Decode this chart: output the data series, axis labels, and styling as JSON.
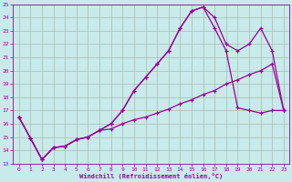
{
  "bg_color": "#c8eaea",
  "line_color": "#990099",
  "grid_color": "#aabbaa",
  "xlim_min": 0,
  "xlim_max": 23,
  "ylim_min": 13,
  "ylim_max": 25,
  "xticks": [
    0,
    1,
    2,
    3,
    4,
    5,
    6,
    7,
    8,
    9,
    10,
    11,
    12,
    13,
    14,
    15,
    16,
    17,
    18,
    19,
    20,
    21,
    22,
    23
  ],
  "yticks": [
    13,
    14,
    15,
    16,
    17,
    18,
    19,
    20,
    21,
    22,
    23,
    24,
    25
  ],
  "xlabel": "Windchill (Refroidissement éolien,°C)",
  "line1_x": [
    0,
    1,
    2,
    3,
    4,
    5,
    6,
    7,
    8,
    9,
    10,
    11,
    12,
    13,
    14,
    15,
    16,
    17,
    18,
    19,
    20,
    21,
    22,
    23
  ],
  "line1_y": [
    16.5,
    14.9,
    13.3,
    14.2,
    14.3,
    14.8,
    15.0,
    15.5,
    15.6,
    16.0,
    16.3,
    16.5,
    16.8,
    17.1,
    17.5,
    17.8,
    18.2,
    18.5,
    19.0,
    19.3,
    19.7,
    20.0,
    20.5,
    17.0
  ],
  "line2_x": [
    0,
    1,
    2,
    3,
    4,
    5,
    6,
    7,
    8,
    9,
    10,
    11,
    12,
    13,
    14,
    15,
    16,
    17,
    18,
    19,
    20,
    21,
    22,
    23
  ],
  "line2_y": [
    16.5,
    14.9,
    13.3,
    14.2,
    14.3,
    14.8,
    15.0,
    15.5,
    16.0,
    17.0,
    18.5,
    19.5,
    20.5,
    21.5,
    23.2,
    24.5,
    24.8,
    23.2,
    21.5,
    17.2,
    17.0,
    16.8,
    17.0,
    17.0
  ],
  "line3_x": [
    0,
    1,
    2,
    3,
    4,
    5,
    6,
    7,
    8,
    9,
    10,
    11,
    12,
    13,
    14,
    15,
    16,
    17,
    18,
    19,
    20,
    21,
    22,
    23
  ],
  "line3_y": [
    16.5,
    14.9,
    13.3,
    14.2,
    14.3,
    14.8,
    15.0,
    15.5,
    16.0,
    17.0,
    18.5,
    19.5,
    20.5,
    21.5,
    23.2,
    24.5,
    24.8,
    24.0,
    22.0,
    21.5,
    22.0,
    23.2,
    21.5,
    17.0
  ]
}
